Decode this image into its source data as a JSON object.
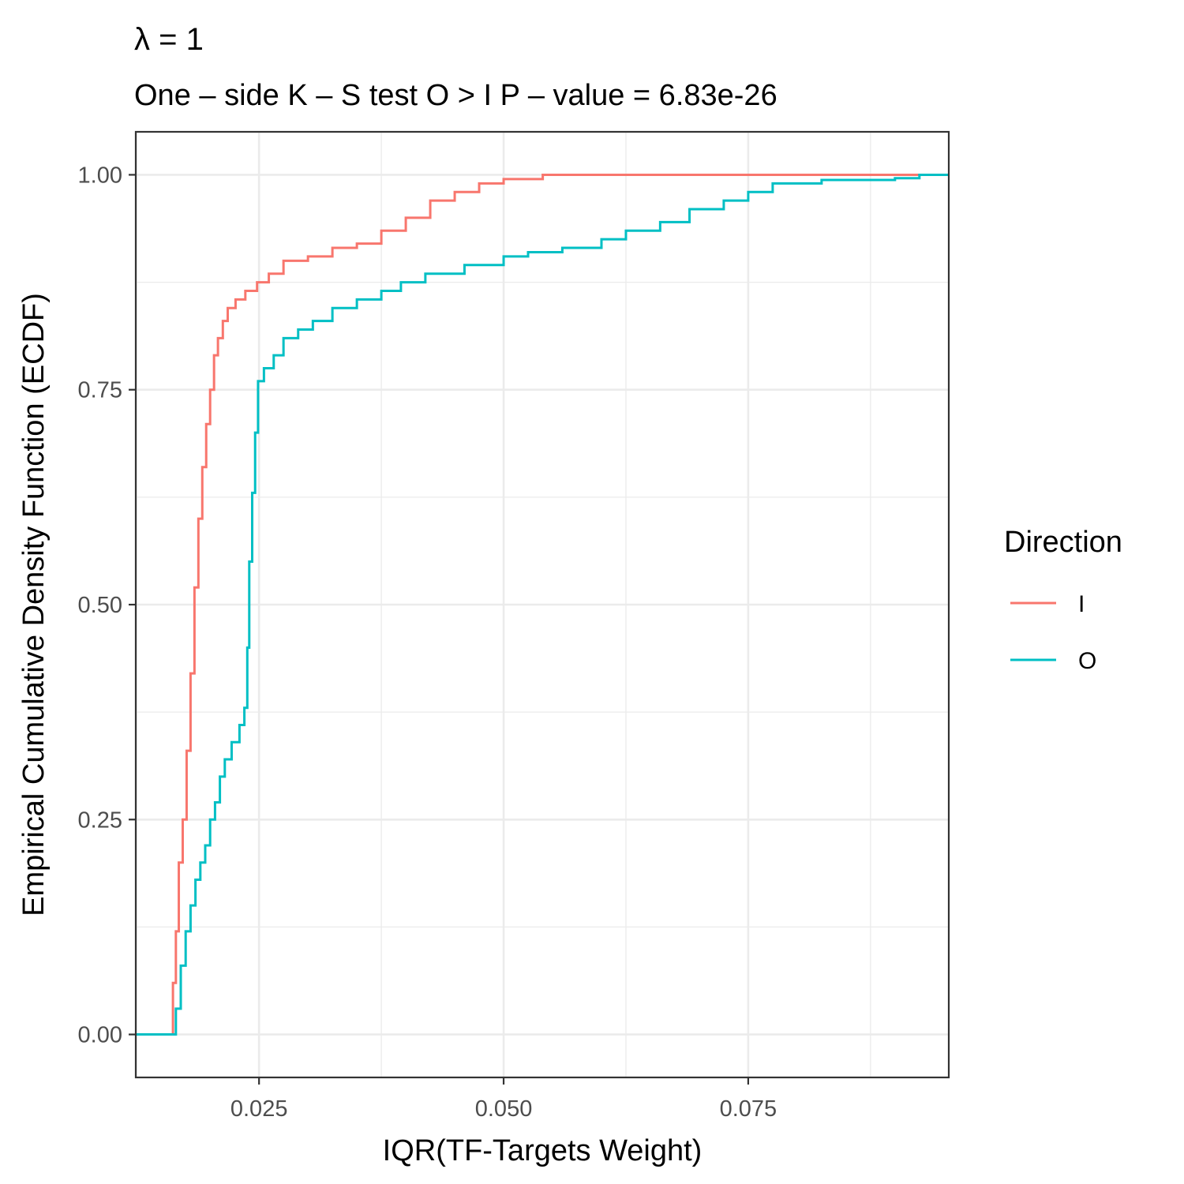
{
  "chart_data": {
    "type": "line",
    "title": "λ = 1",
    "subtitle": "One – side K – S test O > I P – value = 6.83e-26",
    "xlabel": "IQR(TF-Targets Weight)",
    "ylabel": "Empirical Cumulative Density Function (ECDF)",
    "xlim": [
      0.0124,
      0.0955
    ],
    "ylim": [
      -0.05,
      1.05
    ],
    "x_ticks": [
      0.025,
      0.05,
      0.075
    ],
    "x_tick_labels": [
      "0.025",
      "0.050",
      "0.075"
    ],
    "y_ticks": [
      0.0,
      0.25,
      0.5,
      0.75,
      1.0
    ],
    "y_tick_labels": [
      "0.00",
      "0.25",
      "0.50",
      "0.75",
      "1.00"
    ],
    "grid": true,
    "legend": {
      "title": "Direction",
      "position": "right"
    },
    "series": [
      {
        "name": "I",
        "color": "#F8766D",
        "points": [
          [
            0.0124,
            0.0
          ],
          [
            0.016,
            0.0
          ],
          [
            0.0162,
            0.06
          ],
          [
            0.0165,
            0.12
          ],
          [
            0.0168,
            0.2
          ],
          [
            0.0172,
            0.25
          ],
          [
            0.0176,
            0.33
          ],
          [
            0.018,
            0.42
          ],
          [
            0.0184,
            0.52
          ],
          [
            0.0188,
            0.6
          ],
          [
            0.0192,
            0.66
          ],
          [
            0.0196,
            0.71
          ],
          [
            0.02,
            0.75
          ],
          [
            0.0204,
            0.79
          ],
          [
            0.0208,
            0.81
          ],
          [
            0.0213,
            0.83
          ],
          [
            0.0218,
            0.845
          ],
          [
            0.0226,
            0.855
          ],
          [
            0.0236,
            0.865
          ],
          [
            0.0248,
            0.875
          ],
          [
            0.026,
            0.885
          ],
          [
            0.0275,
            0.9
          ],
          [
            0.03,
            0.905
          ],
          [
            0.0325,
            0.915
          ],
          [
            0.035,
            0.92
          ],
          [
            0.0375,
            0.935
          ],
          [
            0.04,
            0.95
          ],
          [
            0.0425,
            0.97
          ],
          [
            0.045,
            0.98
          ],
          [
            0.0475,
            0.99
          ],
          [
            0.05,
            0.995
          ],
          [
            0.054,
            1.0
          ],
          [
            0.0955,
            1.0
          ]
        ]
      },
      {
        "name": "O",
        "color": "#00BFC4",
        "points": [
          [
            0.0124,
            0.0
          ],
          [
            0.016,
            0.0
          ],
          [
            0.0165,
            0.03
          ],
          [
            0.017,
            0.08
          ],
          [
            0.0175,
            0.12
          ],
          [
            0.018,
            0.15
          ],
          [
            0.0185,
            0.18
          ],
          [
            0.019,
            0.2
          ],
          [
            0.0195,
            0.22
          ],
          [
            0.02,
            0.25
          ],
          [
            0.0205,
            0.27
          ],
          [
            0.021,
            0.3
          ],
          [
            0.0215,
            0.32
          ],
          [
            0.0222,
            0.34
          ],
          [
            0.023,
            0.36
          ],
          [
            0.0235,
            0.38
          ],
          [
            0.0238,
            0.45
          ],
          [
            0.024,
            0.55
          ],
          [
            0.0243,
            0.63
          ],
          [
            0.0246,
            0.7
          ],
          [
            0.0249,
            0.76
          ],
          [
            0.0255,
            0.775
          ],
          [
            0.0265,
            0.79
          ],
          [
            0.0275,
            0.81
          ],
          [
            0.029,
            0.82
          ],
          [
            0.0305,
            0.83
          ],
          [
            0.0325,
            0.845
          ],
          [
            0.035,
            0.855
          ],
          [
            0.0375,
            0.865
          ],
          [
            0.0395,
            0.875
          ],
          [
            0.042,
            0.885
          ],
          [
            0.046,
            0.895
          ],
          [
            0.05,
            0.905
          ],
          [
            0.0525,
            0.91
          ],
          [
            0.056,
            0.915
          ],
          [
            0.06,
            0.925
          ],
          [
            0.0625,
            0.935
          ],
          [
            0.066,
            0.945
          ],
          [
            0.069,
            0.96
          ],
          [
            0.0725,
            0.97
          ],
          [
            0.075,
            0.98
          ],
          [
            0.0775,
            0.99
          ],
          [
            0.0825,
            0.994
          ],
          [
            0.09,
            0.996
          ],
          [
            0.0925,
            1.0
          ],
          [
            0.0955,
            1.0
          ]
        ]
      }
    ]
  }
}
